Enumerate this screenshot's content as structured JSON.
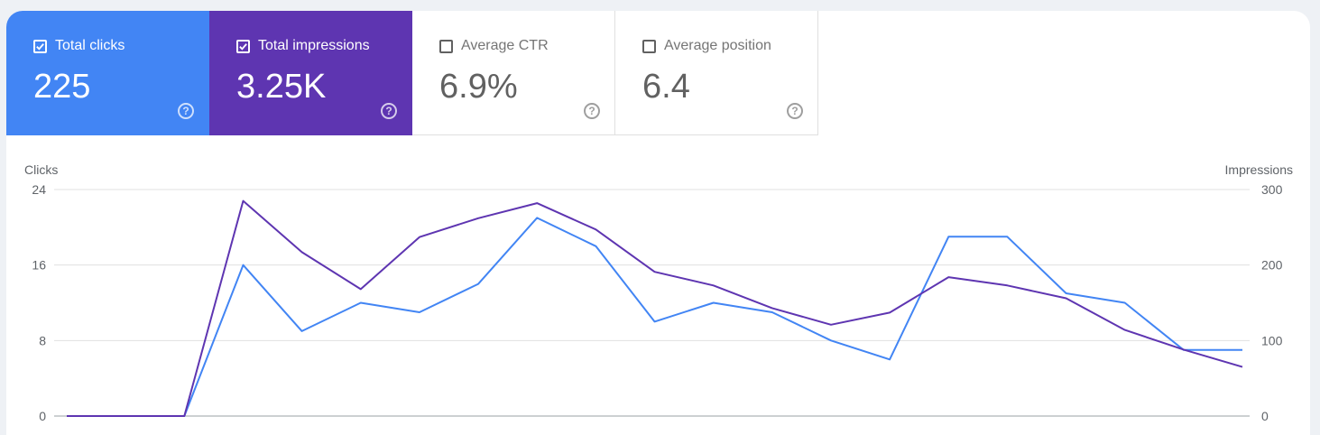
{
  "tiles": [
    {
      "label": "Total clicks",
      "value": "225",
      "checked": true
    },
    {
      "label": "Total impressions",
      "value": "3.25K",
      "checked": true
    },
    {
      "label": "Average CTR",
      "value": "6.9%",
      "checked": false
    },
    {
      "label": "Average position",
      "value": "6.4",
      "checked": false
    }
  ],
  "help_glyph": "?",
  "colors": {
    "clicks": "#4285f4",
    "impressions": "#5e35b1",
    "grid": "#e0e0e0",
    "axis_text": "#5f6368"
  },
  "chart_data": {
    "type": "line",
    "ylabel_left": "Clicks",
    "ylabel_right": "Impressions",
    "left_ticks": [
      "0",
      "8",
      "16",
      "24"
    ],
    "right_ticks": [
      "0",
      "100",
      "200",
      "300"
    ],
    "ylim_left": [
      0,
      24
    ],
    "ylim_right": [
      0,
      300
    ],
    "grid": true,
    "series": [
      {
        "axis": "left",
        "color": "#4285f4",
        "values": [
          0,
          0,
          0,
          16,
          9,
          12,
          11,
          14,
          21,
          18,
          10,
          12,
          11,
          8,
          6,
          19,
          19,
          13,
          12,
          7,
          7
        ]
      },
      {
        "axis": "right",
        "color": "#5e35b1",
        "values": [
          0,
          0,
          0,
          285,
          217,
          168,
          237,
          262,
          282,
          247,
          191,
          173,
          143,
          121,
          137,
          184,
          173,
          156,
          114,
          88,
          65
        ]
      }
    ]
  }
}
